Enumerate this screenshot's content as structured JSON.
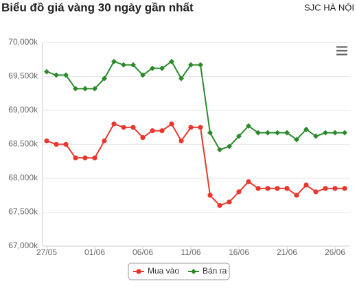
{
  "chart_data": {
    "type": "line",
    "title": "Biểu đồ giá vàng 30 ngày gần nhất",
    "subtitle": "SJC HÀ NỘI",
    "categories": [
      "27/05",
      null,
      null,
      null,
      null,
      "01/06",
      null,
      null,
      null,
      null,
      "06/06",
      null,
      null,
      null,
      null,
      "11/06",
      null,
      null,
      null,
      null,
      "16/06",
      null,
      null,
      null,
      null,
      "21/06",
      null,
      null,
      null,
      null,
      "26/06",
      null
    ],
    "series": [
      {
        "name": "Mua vào",
        "color": "#e8372c",
        "marker": "circle",
        "values": [
          68550,
          68500,
          68500,
          68300,
          68300,
          68300,
          68550,
          68800,
          68750,
          68750,
          68600,
          68700,
          68700,
          68800,
          68550,
          68750,
          68750,
          67750,
          67600,
          67650,
          67800,
          67950,
          67850,
          67850,
          67850,
          67850,
          67750,
          67900,
          67800,
          67850,
          67850,
          67850
        ]
      },
      {
        "name": "Bán ra",
        "color": "#2a8a2a",
        "marker": "diamond",
        "values": [
          69570,
          69520,
          69520,
          69320,
          69320,
          69320,
          69470,
          69720,
          69670,
          69670,
          69520,
          69620,
          69620,
          69720,
          69470,
          69670,
          69670,
          68670,
          68420,
          68470,
          68620,
          68770,
          68670,
          68670,
          68670,
          68670,
          68570,
          68720,
          68620,
          68670,
          68670,
          68670
        ]
      }
    ],
    "ylim": [
      67000,
      70000
    ],
    "yticks": [
      {
        "value": 67000,
        "label": "67,000k"
      },
      {
        "value": 67500,
        "label": "67,500k"
      },
      {
        "value": 68000,
        "label": "68,000k"
      },
      {
        "value": 68500,
        "label": "68,500k"
      },
      {
        "value": 69000,
        "label": "69,000k"
      },
      {
        "value": 69500,
        "label": "69,500k"
      },
      {
        "value": 70000,
        "label": "70,000k"
      }
    ],
    "grid": true
  }
}
